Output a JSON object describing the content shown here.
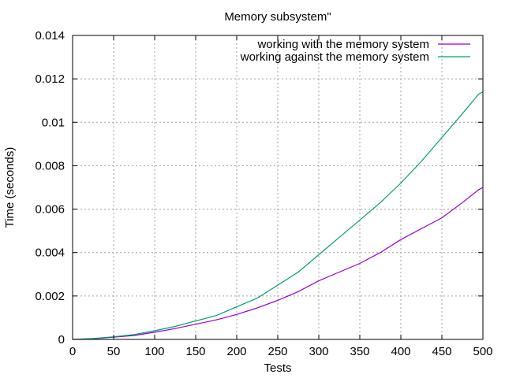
{
  "chart_data": {
    "type": "line",
    "title": "Memory subsystem\"",
    "xlabel": "Tests",
    "ylabel": "Time (seconds)",
    "xlim": [
      0,
      500
    ],
    "ylim": [
      0,
      0.014
    ],
    "x_ticks": [
      "0",
      "50",
      "100",
      "150",
      "200",
      "250",
      "300",
      "350",
      "400",
      "450",
      "500"
    ],
    "y_ticks": [
      "0",
      "0.002",
      "0.004",
      "0.006",
      "0.008",
      "0.01",
      "0.012",
      "0.014"
    ],
    "grid": true,
    "legend_position": "top-right",
    "series": [
      {
        "name": "working with the memory system",
        "color": "#9400d3",
        "x": [
          0,
          25,
          50,
          75,
          100,
          125,
          150,
          175,
          200,
          225,
          250,
          275,
          300,
          325,
          350,
          375,
          400,
          425,
          450,
          475,
          495,
          500
        ],
        "y": [
          0,
          3e-05,
          0.0001,
          0.00018,
          0.00033,
          0.0005,
          0.0007,
          0.0009,
          0.00115,
          0.00145,
          0.0018,
          0.0022,
          0.0027,
          0.0031,
          0.0035,
          0.004,
          0.0046,
          0.0051,
          0.0056,
          0.0063,
          0.0069,
          0.007
        ]
      },
      {
        "name": "working against the memory system",
        "color": "#009e73",
        "x": [
          0,
          25,
          50,
          75,
          100,
          125,
          150,
          175,
          200,
          225,
          250,
          275,
          300,
          325,
          350,
          375,
          400,
          425,
          450,
          475,
          495,
          500
        ],
        "y": [
          0,
          4e-05,
          0.00012,
          0.00022,
          0.0004,
          0.0006,
          0.00085,
          0.0011,
          0.0015,
          0.0019,
          0.0025,
          0.0031,
          0.0039,
          0.0047,
          0.0055,
          0.0063,
          0.0072,
          0.0082,
          0.0093,
          0.0104,
          0.0113,
          0.0114
        ]
      }
    ]
  }
}
